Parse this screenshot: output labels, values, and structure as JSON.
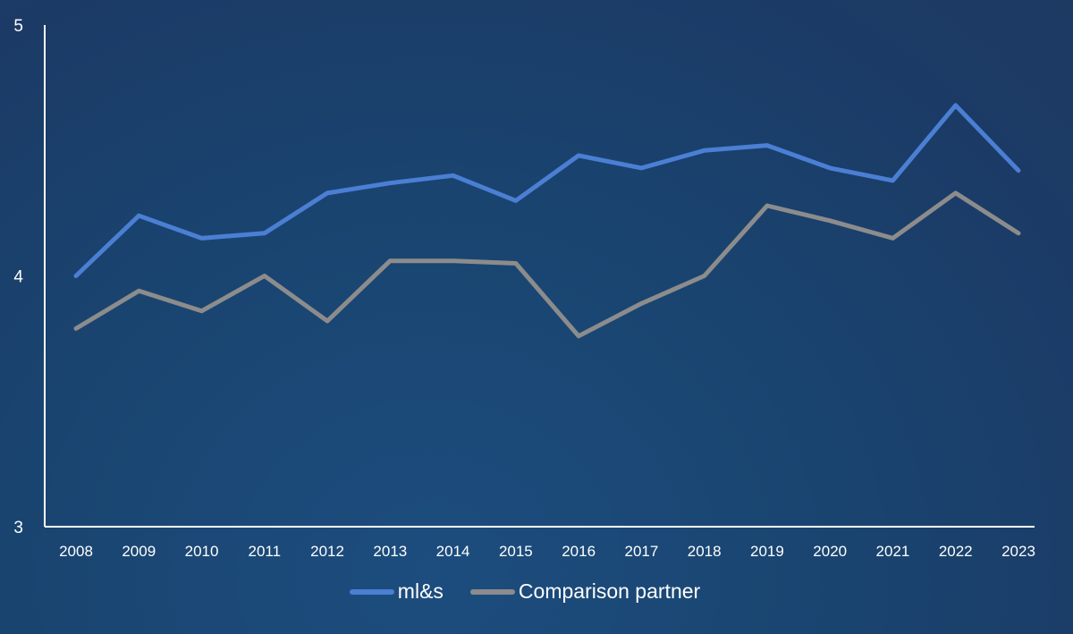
{
  "chart_data": {
    "type": "line",
    "title": "",
    "xlabel": "",
    "ylabel": "",
    "ylim": [
      3,
      5
    ],
    "yticks": [
      "3",
      "4",
      "5"
    ],
    "grid": false,
    "legend_position": "bottom",
    "categories": [
      "2008",
      "2009",
      "2010",
      "2011",
      "2012",
      "2013",
      "2014",
      "2015",
      "2016",
      "2017",
      "2018",
      "2019",
      "2020",
      "2021",
      "2022",
      "2023"
    ],
    "series": [
      {
        "name": "ml&s",
        "color": "#4a7fd4",
        "values": [
          4.0,
          4.24,
          4.15,
          4.17,
          4.33,
          4.37,
          4.4,
          4.3,
          4.48,
          4.43,
          4.5,
          4.52,
          4.43,
          4.38,
          4.68,
          4.42
        ]
      },
      {
        "name": "Comparison partner",
        "color": "#8c8c8c",
        "values": [
          3.79,
          3.94,
          3.86,
          4.0,
          3.82,
          4.06,
          4.06,
          4.05,
          3.76,
          3.89,
          4.0,
          4.28,
          4.22,
          4.15,
          4.33,
          4.17
        ]
      }
    ]
  },
  "colors": {
    "axis": "#ffffff",
    "background": "#1b4370"
  }
}
